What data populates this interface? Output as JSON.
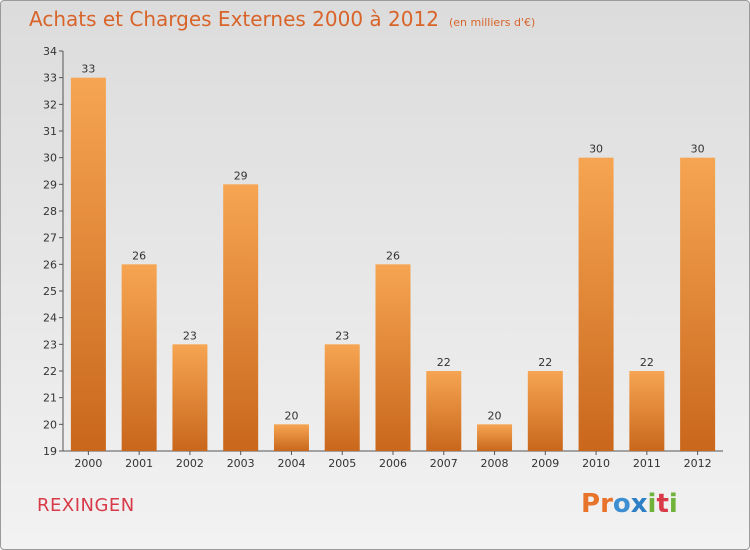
{
  "header": {
    "title": "Achats et Charges Externes 2000 à 2012",
    "subtitle": "(en milliers d'€)"
  },
  "commune": "REXINGEN",
  "logo": {
    "text": "Proxiti"
  },
  "colors": {
    "title": "#d8642a",
    "commune": "#d83a48",
    "bar_top": "#f6a552",
    "bar_bottom": "#c9671c"
  },
  "chart_data": {
    "type": "bar",
    "title": "Achats et Charges Externes 2000 à 2012",
    "subtitle": "(en milliers d'€)",
    "xlabel": "",
    "ylabel": "",
    "categories": [
      "2000",
      "2001",
      "2002",
      "2003",
      "2004",
      "2005",
      "2006",
      "2007",
      "2008",
      "2009",
      "2010",
      "2011",
      "2012"
    ],
    "values": [
      33,
      26,
      23,
      29,
      20,
      23,
      26,
      22,
      20,
      22,
      30,
      22,
      30
    ],
    "ylim": [
      19,
      34
    ],
    "yticks": [
      19,
      20,
      21,
      22,
      23,
      24,
      25,
      26,
      27,
      28,
      29,
      30,
      31,
      32,
      33,
      34
    ],
    "grid": false,
    "legend": "none"
  }
}
